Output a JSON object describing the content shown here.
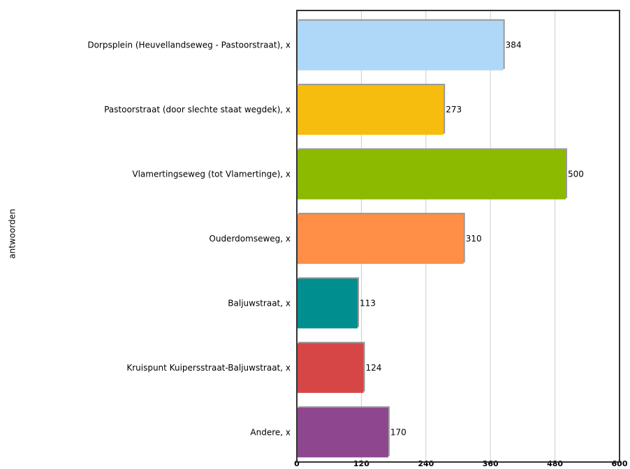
{
  "chart_data": {
    "type": "bar",
    "orientation": "horizontal",
    "y_axis_label": "antwoorden",
    "categories": [
      "Dorpsplein (Heuvellandseweg - Pastoorstraat), x",
      "Pastoorstraat (door slechte staat wegdek), x",
      "Vlamertingseweg (tot Vlamertinge), x",
      "Ouderdomseweg, x",
      "Baljuwstraat, x",
      "Kruispunt Kuipersstraat-Baljuwstraat, x",
      "Andere, x"
    ],
    "values": [
      384,
      273,
      500,
      310,
      113,
      124,
      170
    ],
    "colors": [
      "#afd8f8",
      "#f6bd0f",
      "#8bba00",
      "#ff8e46",
      "#008e8e",
      "#d64646",
      "#8e468e"
    ],
    "xlim": [
      0,
      600
    ],
    "xticks": [
      0,
      120,
      240,
      360,
      480,
      600
    ],
    "grid": true
  }
}
